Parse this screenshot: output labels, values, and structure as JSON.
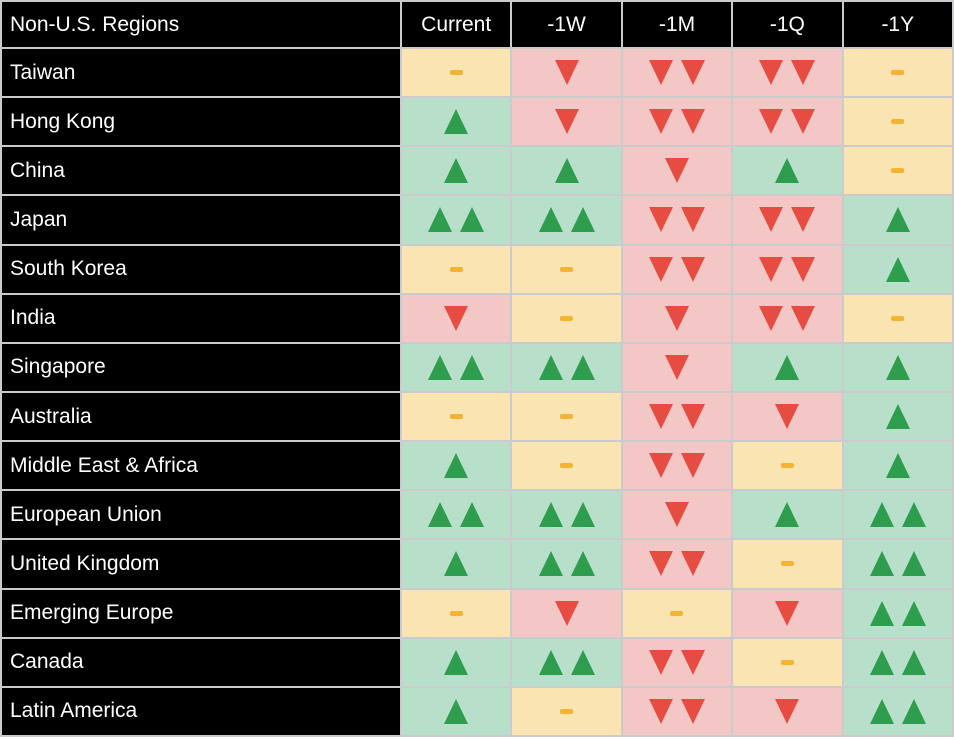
{
  "chart_data": {
    "type": "heatmap",
    "title": "Non-U.S. Regions",
    "corner_label": "Non-U.S. Regions",
    "time_columns": [
      "Current",
      "-1W",
      "-1M",
      "-1Q",
      "-1Y"
    ],
    "rows": [
      {
        "region": "Taiwan",
        "signals": [
          "flat",
          "down",
          "down2",
          "down2",
          "flat"
        ]
      },
      {
        "region": "Hong Kong",
        "signals": [
          "up",
          "down",
          "down2",
          "down2",
          "flat"
        ]
      },
      {
        "region": "China",
        "signals": [
          "up",
          "up",
          "down",
          "up",
          "flat"
        ]
      },
      {
        "region": "Japan",
        "signals": [
          "up2",
          "up2",
          "down2",
          "down2",
          "up"
        ]
      },
      {
        "region": "South Korea",
        "signals": [
          "flat",
          "flat",
          "down2",
          "down2",
          "up"
        ]
      },
      {
        "region": "India",
        "signals": [
          "down",
          "flat",
          "down",
          "down2",
          "flat"
        ]
      },
      {
        "region": "Singapore",
        "signals": [
          "up2",
          "up2",
          "down",
          "up",
          "up"
        ]
      },
      {
        "region": "Australia",
        "signals": [
          "flat",
          "flat",
          "down2",
          "down",
          "up"
        ]
      },
      {
        "region": "Middle East & Africa",
        "signals": [
          "up",
          "flat",
          "down2",
          "flat",
          "up"
        ]
      },
      {
        "region": "European Union",
        "signals": [
          "up2",
          "up2",
          "down",
          "up",
          "up2"
        ]
      },
      {
        "region": "United Kingdom",
        "signals": [
          "up",
          "up2",
          "down2",
          "flat",
          "up2"
        ]
      },
      {
        "region": "Emerging Europe",
        "signals": [
          "flat",
          "down",
          "flat",
          "down",
          "up2"
        ]
      },
      {
        "region": "Canada",
        "signals": [
          "up",
          "up2",
          "down2",
          "flat",
          "up2"
        ]
      },
      {
        "region": "Latin America",
        "signals": [
          "up",
          "flat",
          "down2",
          "down",
          "up2"
        ]
      }
    ],
    "signal_scale": {
      "up2": "strong positive (two green up triangles)",
      "up": "positive (one green up triangle)",
      "flat": "neutral (amber dash)",
      "down": "negative (one red down triangle)",
      "down2": "strong negative (two red down triangles)"
    }
  },
  "colors": {
    "header_bg": "#000000",
    "header_text": "#ffffff",
    "grid_line": "#cbcbcd",
    "positive_cell_bg": "#b7dfc9",
    "negative_cell_bg": "#f2c7c5",
    "neutral_cell_bg": "#fae5b2",
    "up_triangle": "#2e9e4e",
    "down_triangle": "#e74c42",
    "neutral_dash": "#f4b331"
  }
}
